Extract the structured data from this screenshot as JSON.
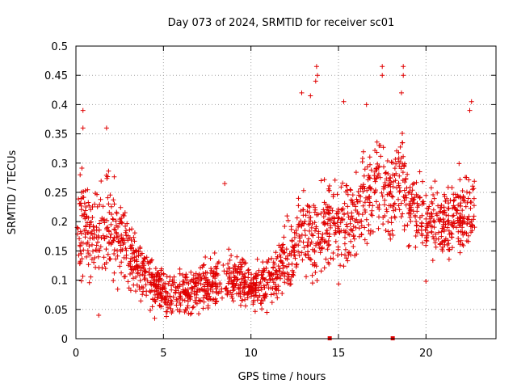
{
  "chart_data": {
    "type": "scatter",
    "title": "Day 073 of 2024, SRMTID for receiver sc01",
    "xlabel": "GPS time / hours",
    "ylabel": "SRMTID / TECUs",
    "xlim": [
      0,
      24
    ],
    "ylim": [
      0,
      0.5
    ],
    "xticks": [
      "0",
      "5",
      "10",
      "15",
      "20"
    ],
    "xtick_values": [
      0,
      5,
      10,
      15,
      20
    ],
    "yticks": [
      "0",
      "0.05",
      "0.1",
      "0.15",
      "0.2",
      "0.25",
      "0.3",
      "0.35",
      "0.4",
      "0.45",
      "0.5"
    ],
    "ytick_values": [
      0,
      0.05,
      0.1,
      0.15,
      0.2,
      0.25,
      0.3,
      0.35,
      0.4,
      0.45,
      0.5
    ],
    "grid": true,
    "marker": "+",
    "series_color": "#e00000",
    "series": [
      {
        "name": "SRMTID",
        "profile_x": [
          0,
          0.5,
          1,
          1.5,
          2,
          2.5,
          3,
          3.5,
          4,
          4.5,
          5,
          5.5,
          6,
          6.5,
          7,
          7.5,
          8,
          8.5,
          9,
          9.5,
          10,
          10.5,
          11,
          11.5,
          12,
          12.5,
          13,
          13.5,
          14,
          14.5,
          15,
          15.5,
          16,
          16.5,
          17,
          17.5,
          18,
          18.5,
          19,
          19.5,
          20,
          20.5,
          21,
          21.5,
          22,
          22.5,
          22.8
        ],
        "profile_median": [
          0.2,
          0.2,
          0.17,
          0.2,
          0.18,
          0.17,
          0.15,
          0.13,
          0.11,
          0.09,
          0.08,
          0.08,
          0.08,
          0.08,
          0.09,
          0.09,
          0.1,
          0.1,
          0.1,
          0.1,
          0.09,
          0.09,
          0.1,
          0.11,
          0.13,
          0.16,
          0.18,
          0.17,
          0.18,
          0.2,
          0.2,
          0.2,
          0.21,
          0.24,
          0.27,
          0.26,
          0.24,
          0.28,
          0.23,
          0.21,
          0.21,
          0.2,
          0.2,
          0.2,
          0.21,
          0.22,
          0.23
        ],
        "profile_spread": [
          0.08,
          0.08,
          0.07,
          0.08,
          0.07,
          0.06,
          0.06,
          0.05,
          0.04,
          0.03,
          0.03,
          0.03,
          0.03,
          0.035,
          0.035,
          0.035,
          0.035,
          0.035,
          0.035,
          0.035,
          0.035,
          0.035,
          0.035,
          0.04,
          0.05,
          0.06,
          0.06,
          0.06,
          0.07,
          0.07,
          0.07,
          0.07,
          0.07,
          0.08,
          0.08,
          0.07,
          0.07,
          0.08,
          0.06,
          0.05,
          0.05,
          0.05,
          0.05,
          0.05,
          0.06,
          0.06,
          0.05
        ],
        "point_count": 1800
      }
    ],
    "outliers": [
      {
        "x": 0.4,
        "y": 0.39
      },
      {
        "x": 0.4,
        "y": 0.36
      },
      {
        "x": 1.75,
        "y": 0.36
      },
      {
        "x": 8.5,
        "y": 0.265
      },
      {
        "x": 13.75,
        "y": 0.465
      },
      {
        "x": 13.8,
        "y": 0.45
      },
      {
        "x": 17.5,
        "y": 0.465
      },
      {
        "x": 17.5,
        "y": 0.45
      },
      {
        "x": 18.7,
        "y": 0.465
      },
      {
        "x": 18.7,
        "y": 0.45
      },
      {
        "x": 18.6,
        "y": 0.42
      },
      {
        "x": 22.6,
        "y": 0.405
      },
      {
        "x": 22.5,
        "y": 0.39
      },
      {
        "x": 15.3,
        "y": 0.405
      },
      {
        "x": 16.6,
        "y": 0.4
      },
      {
        "x": 12.9,
        "y": 0.42
      },
      {
        "x": 13.4,
        "y": 0.415
      },
      {
        "x": 13.7,
        "y": 0.44
      },
      {
        "x": 20.0,
        "y": 0.098
      },
      {
        "x": 1.3,
        "y": 0.04
      },
      {
        "x": 4.5,
        "y": 0.035
      }
    ],
    "zero_markers": [
      {
        "x": 14.5,
        "y": 0
      },
      {
        "x": 18.1,
        "y": 0
      }
    ]
  }
}
